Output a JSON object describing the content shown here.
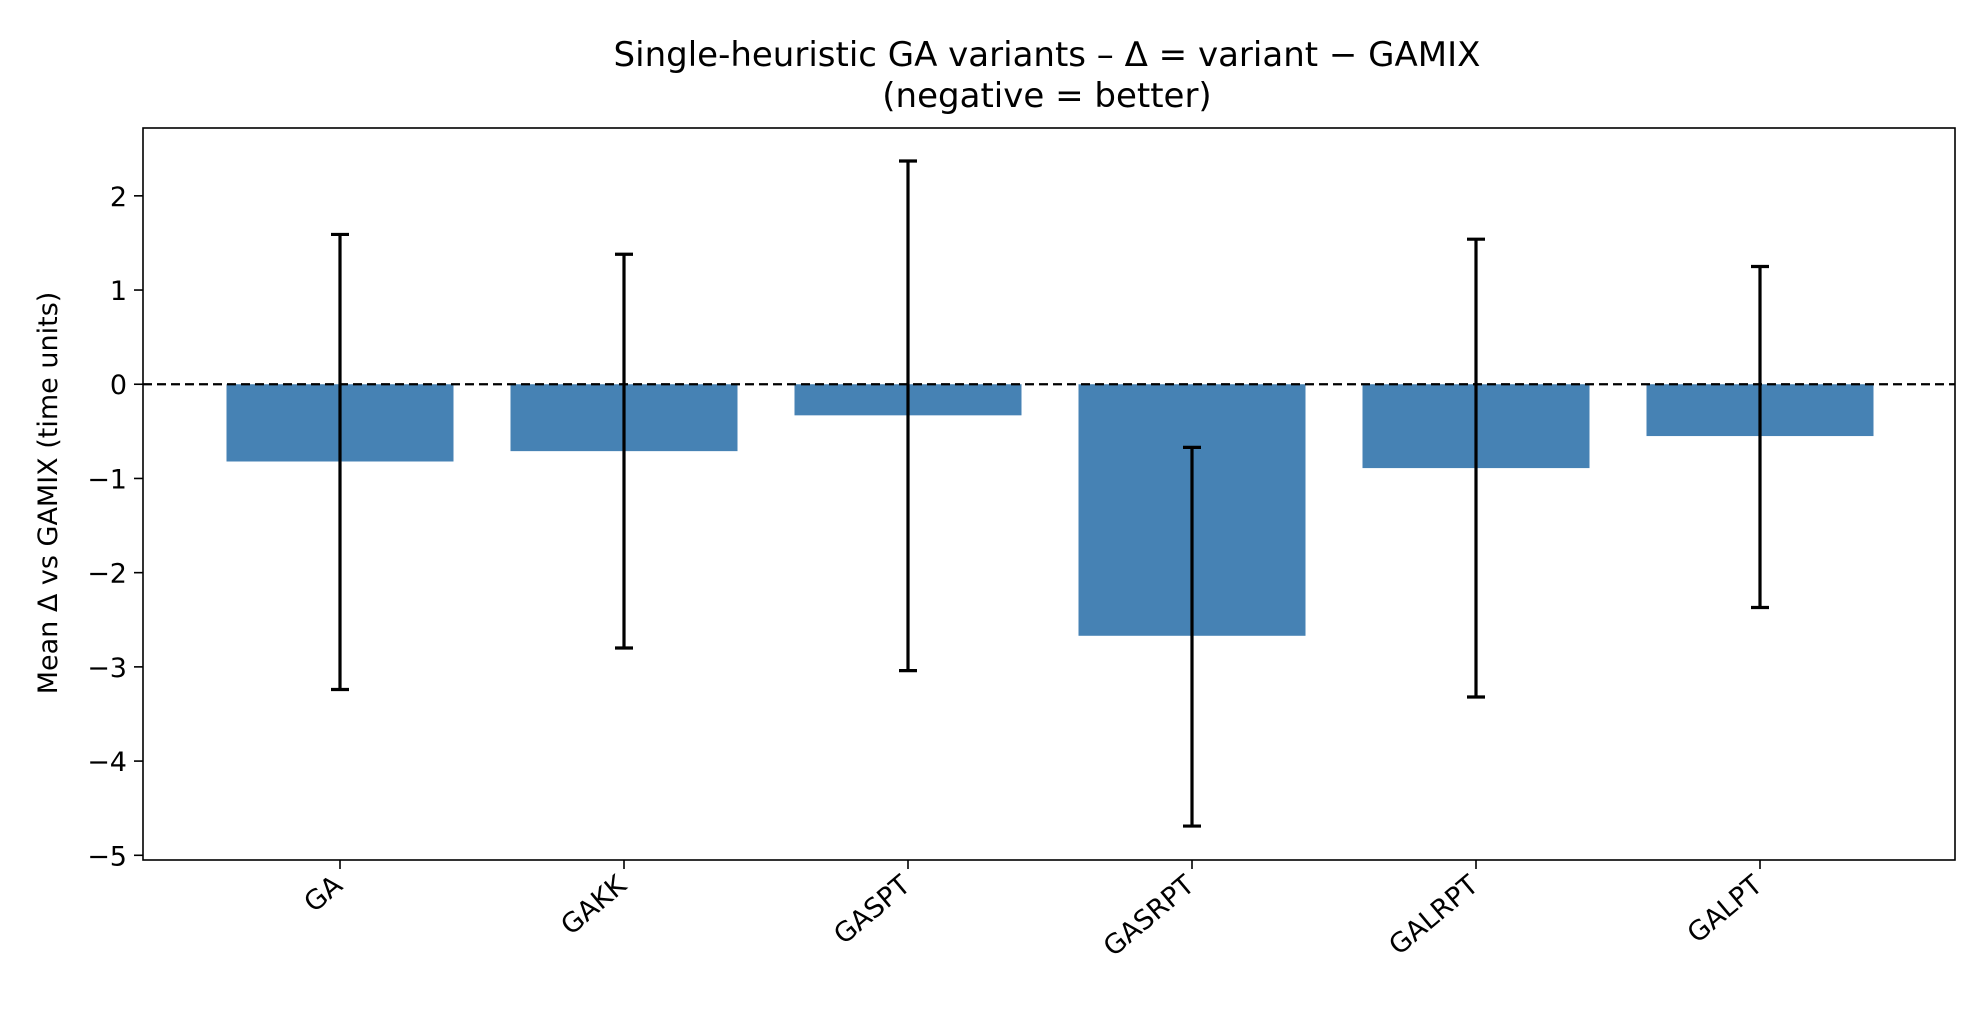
{
  "chart_data": {
    "type": "bar",
    "title": "Single-heuristic GA variants – Δ = variant − GAMIX",
    "subtitle": "(negative = better)",
    "xlabel": "",
    "ylabel": "Mean Δ vs GAMIX (time units)",
    "categories": [
      "GA",
      "GAKK",
      "GASPT",
      "GASRPT",
      "GALRPT",
      "GALPT"
    ],
    "values": [
      -0.82,
      -0.71,
      -0.33,
      -2.67,
      -0.89,
      -0.55
    ],
    "error_bars": [
      {
        "low": -3.24,
        "high": 1.59
      },
      {
        "low": -2.8,
        "high": 1.38
      },
      {
        "low": -3.04,
        "high": 2.37
      },
      {
        "low": -4.69,
        "high": -0.67
      },
      {
        "low": -3.32,
        "high": 1.54
      },
      {
        "low": -2.37,
        "high": 1.25
      }
    ],
    "ylim": [
      -5.05,
      2.72
    ],
    "yticks": [
      2,
      1,
      0,
      -1,
      -2,
      -3,
      -4,
      -5
    ],
    "ytick_labels": [
      "2",
      "1",
      "0",
      "−1",
      "−2",
      "−3",
      "−4",
      "−5"
    ],
    "reference_line": 0,
    "grid": false,
    "bar_color": "#4682b4",
    "errorbar_color": "#000000"
  }
}
